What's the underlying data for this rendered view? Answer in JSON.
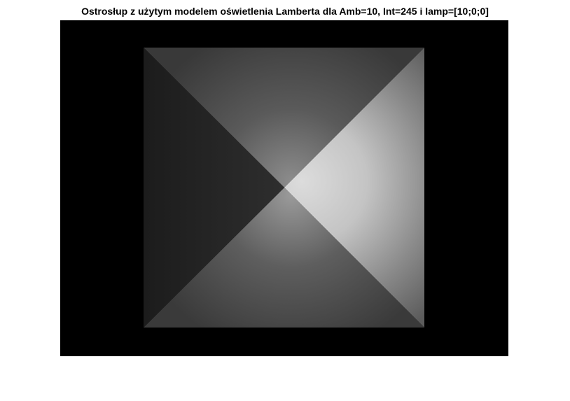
{
  "title": "Ostrosłup z użytym modelem oświetlenia Lamberta dla Amb=10, Int=245 i lamp=[10;0;0]",
  "scene": {
    "background_color": "#000000",
    "page_background": "#ffffff",
    "faces": [
      {
        "name": "top",
        "base_color": "#3a3a3a",
        "highlight_color": "#6a6a6a"
      },
      {
        "name": "right",
        "base_color": "#5a5a5a",
        "highlight_color": "#dadada"
      },
      {
        "name": "bottom",
        "base_color": "#3f3f3f",
        "highlight_color": "#7c7c7c"
      },
      {
        "name": "left",
        "base_color": "#1b1b1b",
        "highlight_color": "#303030"
      }
    ]
  }
}
